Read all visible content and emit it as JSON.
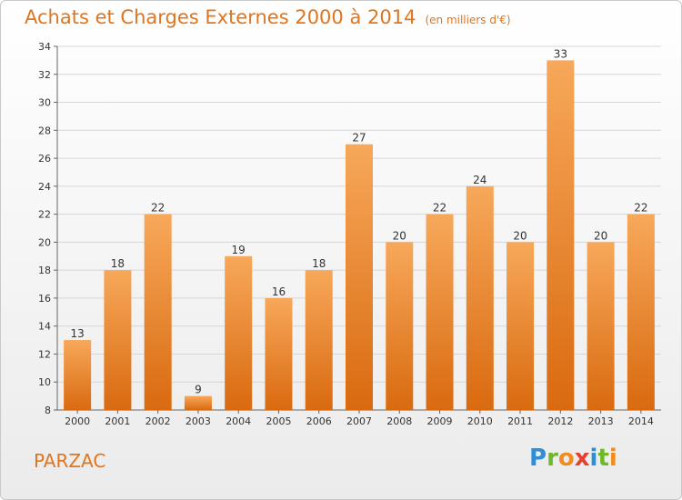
{
  "title": "Achats et Charges Externes 2000 à 2014",
  "unit": "(en milliers d'€)",
  "place": "PARZAC",
  "logo": {
    "letters": [
      "P",
      "r",
      "o",
      "x",
      "i",
      "t",
      "i"
    ],
    "colors": [
      "#2f8fd6",
      "#6fb82c",
      "#f28c1f",
      "#e8402a",
      "#2f8fd6",
      "#6fb82c",
      "#f28c1f"
    ]
  },
  "colors": {
    "accent": "#e0751e",
    "bar_top": "#f7a85a",
    "bar_bottom": "#d96a10"
  },
  "chart_data": {
    "type": "bar",
    "title": "Achats et Charges Externes 2000 à 2014",
    "xlabel": "",
    "ylabel": "",
    "categories": [
      "2000",
      "2001",
      "2002",
      "2003",
      "2004",
      "2005",
      "2006",
      "2007",
      "2008",
      "2009",
      "2010",
      "2011",
      "2012",
      "2013",
      "2014"
    ],
    "values": [
      13,
      18,
      22,
      9,
      19,
      16,
      18,
      27,
      20,
      22,
      24,
      20,
      33,
      20,
      22
    ],
    "ylim": [
      8,
      34
    ],
    "yticks": [
      8,
      10,
      12,
      14,
      16,
      18,
      20,
      22,
      24,
      26,
      28,
      30,
      32,
      34
    ],
    "grid": true
  }
}
